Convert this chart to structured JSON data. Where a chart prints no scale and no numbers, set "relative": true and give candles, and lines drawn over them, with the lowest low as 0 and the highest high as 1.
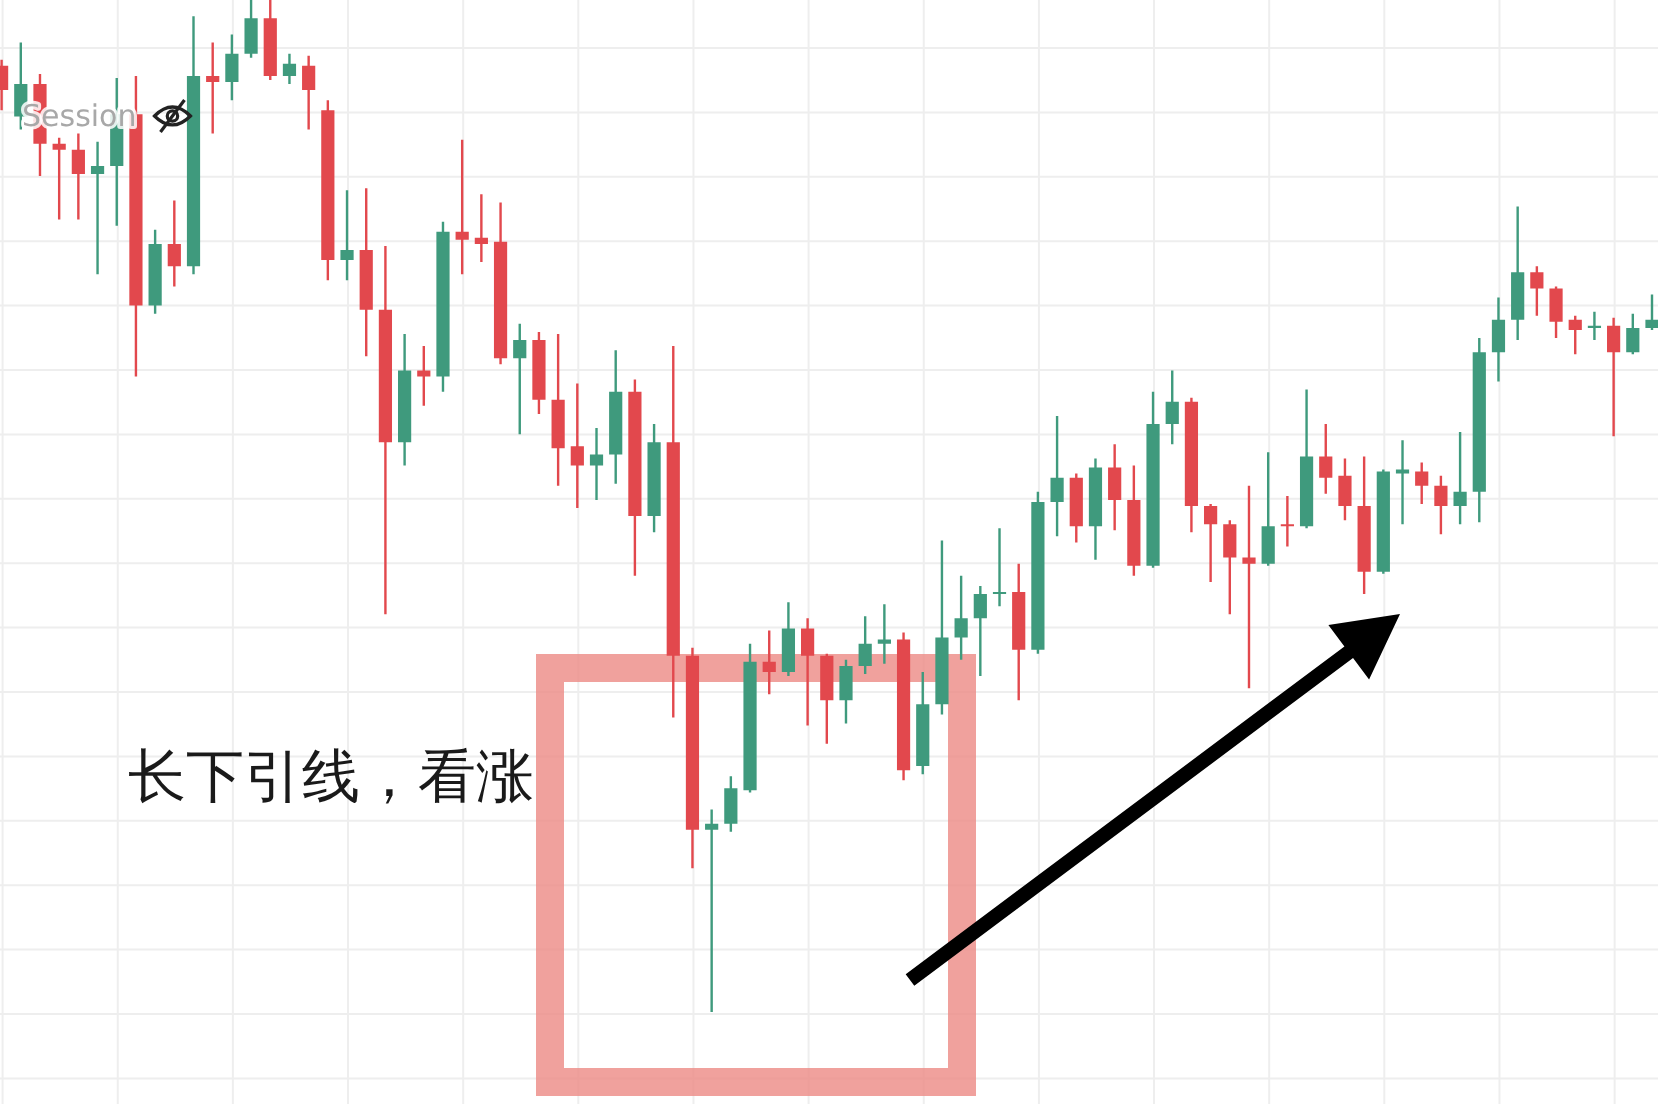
{
  "chart_data": {
    "type": "candlestick",
    "relative": true,
    "grid": true,
    "annotations": [
      "Session",
      "长下引线，看涨"
    ],
    "categories": [
      null,
      null,
      null,
      null,
      null,
      null,
      null,
      null,
      null,
      null,
      null,
      null,
      null,
      null,
      null,
      null,
      null,
      null,
      null,
      null,
      null,
      null,
      null,
      null,
      null,
      null,
      null,
      null,
      null,
      null,
      null,
      null,
      null,
      null,
      null,
      null,
      null,
      null,
      null,
      null,
      null,
      null,
      null,
      null,
      null,
      null,
      null,
      null,
      null,
      null,
      null,
      null,
      null,
      null,
      null,
      null,
      null,
      null,
      null,
      null,
      null,
      null,
      null,
      null,
      null,
      null,
      null,
      null,
      null,
      null,
      null,
      null,
      null,
      null,
      null,
      null,
      null,
      null,
      null,
      null,
      null,
      null,
      null,
      null,
      null,
      null,
      null
    ],
    "ohlc": [
      [
        0.935,
        0.941,
        0.891,
        0.911
      ],
      [
        0.885,
        0.958,
        0.872,
        0.917
      ],
      [
        0.917,
        0.927,
        0.826,
        0.858
      ],
      [
        0.858,
        0.864,
        0.783,
        0.852
      ],
      [
        0.852,
        0.868,
        0.783,
        0.828
      ],
      [
        0.828,
        0.86,
        0.729,
        0.836
      ],
      [
        0.836,
        0.923,
        0.777,
        0.887
      ],
      [
        0.887,
        0.925,
        0.628,
        0.698
      ],
      [
        0.698,
        0.773,
        0.69,
        0.759
      ],
      [
        0.759,
        0.802,
        0.717,
        0.737
      ],
      [
        0.737,
        0.984,
        0.729,
        0.925
      ],
      [
        0.925,
        0.958,
        0.868,
        0.919
      ],
      [
        0.919,
        0.966,
        0.901,
        0.947
      ],
      [
        0.947,
        1,
        0.943,
        0.982
      ],
      [
        0.982,
        1,
        0.921,
        0.925
      ],
      [
        0.925,
        0.947,
        0.917,
        0.937
      ],
      [
        0.935,
        0.945,
        0.872,
        0.911
      ],
      [
        0.891,
        0.901,
        0.723,
        0.743
      ],
      [
        0.743,
        0.812,
        0.723,
        0.753
      ],
      [
        0.753,
        0.814,
        0.648,
        0.694
      ],
      [
        0.694,
        0.757,
        0.393,
        0.563
      ],
      [
        0.563,
        0.67,
        0.54,
        0.634
      ],
      [
        0.634,
        0.658,
        0.599,
        0.628
      ],
      [
        0.628,
        0.781,
        0.613,
        0.771
      ],
      [
        0.771,
        0.862,
        0.729,
        0.763
      ],
      [
        0.765,
        0.808,
        0.741,
        0.759
      ],
      [
        0.761,
        0.8,
        0.64,
        0.646
      ],
      [
        0.646,
        0.68,
        0.571,
        0.664
      ],
      [
        0.664,
        0.672,
        0.591,
        0.605
      ],
      [
        0.605,
        0.67,
        0.52,
        0.557
      ],
      [
        0.559,
        0.621,
        0.498,
        0.54
      ],
      [
        0.54,
        0.577,
        0.506,
        0.551
      ],
      [
        0.551,
        0.654,
        0.522,
        0.613
      ],
      [
        0.613,
        0.625,
        0.431,
        0.49
      ],
      [
        0.49,
        0.581,
        0.474,
        0.563
      ],
      [
        0.563,
        0.658,
        0.291,
        0.352
      ],
      [
        0.352,
        0.36,
        0.142,
        0.18
      ],
      [
        0.18,
        0.2,
        0,
        0.186
      ],
      [
        0.186,
        0.233,
        0.178,
        0.221
      ],
      [
        0.219,
        0.364,
        0.217,
        0.346
      ],
      [
        0.346,
        0.377,
        0.314,
        0.336
      ],
      [
        0.336,
        0.405,
        0.332,
        0.379
      ],
      [
        0.379,
        0.389,
        0.283,
        0.352
      ],
      [
        0.352,
        0.354,
        0.265,
        0.308
      ],
      [
        0.308,
        0.348,
        0.285,
        0.342
      ],
      [
        0.342,
        0.391,
        0.334,
        0.364
      ],
      [
        0.364,
        0.403,
        0.344,
        0.368
      ],
      [
        0.368,
        0.375,
        0.229,
        0.239
      ],
      [
        0.243,
        0.336,
        0.235,
        0.304
      ],
      [
        0.304,
        0.466,
        0.294,
        0.37
      ],
      [
        0.37,
        0.431,
        0.348,
        0.389
      ],
      [
        0.389,
        0.421,
        0.332,
        0.413
      ],
      [
        0.413,
        0.478,
        0.401,
        0.415
      ],
      [
        0.415,
        0.443,
        0.308,
        0.358
      ],
      [
        0.358,
        0.514,
        0.354,
        0.504
      ],
      [
        0.504,
        0.589,
        0.47,
        0.528
      ],
      [
        0.528,
        0.532,
        0.464,
        0.48
      ],
      [
        0.48,
        0.547,
        0.447,
        0.538
      ],
      [
        0.538,
        0.561,
        0.476,
        0.506
      ],
      [
        0.506,
        0.54,
        0.431,
        0.441
      ],
      [
        0.441,
        0.613,
        0.439,
        0.581
      ],
      [
        0.581,
        0.634,
        0.561,
        0.603
      ],
      [
        0.603,
        0.607,
        0.474,
        0.5
      ],
      [
        0.5,
        0.502,
        0.425,
        0.482
      ],
      [
        0.482,
        0.486,
        0.393,
        0.449
      ],
      [
        0.449,
        0.52,
        0.32,
        0.443
      ],
      [
        0.443,
        0.553,
        0.441,
        0.48
      ],
      [
        0.482,
        0.51,
        0.46,
        0.48
      ],
      [
        0.48,
        0.615,
        0.478,
        0.549
      ],
      [
        0.549,
        0.581,
        0.512,
        0.528
      ],
      [
        0.53,
        0.547,
        0.486,
        0.5
      ],
      [
        0.5,
        0.549,
        0.413,
        0.435
      ],
      [
        0.435,
        0.536,
        0.433,
        0.534
      ],
      [
        0.532,
        0.565,
        0.482,
        0.536
      ],
      [
        0.534,
        0.543,
        0.502,
        0.52
      ],
      [
        0.52,
        0.53,
        0.472,
        0.5
      ],
      [
        0.5,
        0.573,
        0.482,
        0.514
      ],
      [
        0.514,
        0.666,
        0.484,
        0.652
      ],
      [
        0.652,
        0.706,
        0.623,
        0.684
      ],
      [
        0.684,
        0.796,
        0.664,
        0.731
      ],
      [
        0.731,
        0.737,
        0.688,
        0.715
      ],
      [
        0.715,
        0.717,
        0.666,
        0.682
      ],
      [
        0.684,
        0.688,
        0.65,
        0.674
      ],
      [
        0.676,
        0.692,
        0.664,
        0.678
      ],
      [
        0.678,
        0.686,
        0.569,
        0.652
      ],
      [
        0.652,
        0.69,
        0.65,
        0.676
      ],
      [
        0.676,
        0.709,
        0.674,
        0.684
      ]
    ],
    "colors": [
      "#e2484d",
      "#3f9a7d",
      "#e2484d",
      "#e2484d",
      "#e2484d",
      "#3f9a7d",
      "#3f9a7d",
      "#e2484d",
      "#3f9a7d",
      "#e2484d",
      "#3f9a7d",
      "#e2484d",
      "#3f9a7d",
      "#3f9a7d",
      "#e2484d",
      "#3f9a7d",
      "#e2484d",
      "#e2484d",
      "#3f9a7d",
      "#e2484d",
      "#e2484d",
      "#3f9a7d",
      "#e2484d",
      "#3f9a7d",
      "#e2484d",
      "#e2484d",
      "#e2484d",
      "#3f9a7d",
      "#e2484d",
      "#e2484d",
      "#e2484d",
      "#3f9a7d",
      "#3f9a7d",
      "#e2484d",
      "#3f9a7d",
      "#e2484d",
      "#e2484d",
      "#3f9a7d",
      "#3f9a7d",
      "#3f9a7d",
      "#e2484d",
      "#3f9a7d",
      "#e2484d",
      "#e2484d",
      "#3f9a7d",
      "#3f9a7d",
      "#3f9a7d",
      "#e2484d",
      "#3f9a7d",
      "#3f9a7d",
      "#3f9a7d",
      "#3f9a7d",
      "#3f9a7d",
      "#e2484d",
      "#3f9a7d",
      "#3f9a7d",
      "#e2484d",
      "#3f9a7d",
      "#e2484d",
      "#e2484d",
      "#3f9a7d",
      "#3f9a7d",
      "#e2484d",
      "#e2484d",
      "#e2484d",
      "#e2484d",
      "#3f9a7d",
      "#e2484d",
      "#3f9a7d",
      "#e2484d",
      "#e2484d",
      "#e2484d",
      "#3f9a7d",
      "#3f9a7d",
      "#e2484d",
      "#e2484d",
      "#3f9a7d",
      "#3f9a7d",
      "#3f9a7d",
      "#3f9a7d",
      "#e2484d",
      "#e2484d",
      "#e2484d",
      "#3f9a7d",
      "#e2484d",
      "#3f9a7d",
      "#3f9a7d"
    ]
  }
}
